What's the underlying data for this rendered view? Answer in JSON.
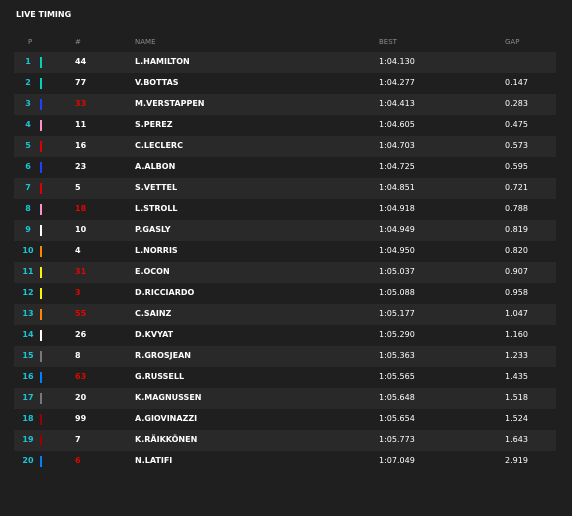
{
  "header": {
    "title": "LIVE TIMING"
  },
  "table": {
    "columns": [
      "P",
      "#",
      "NAME",
      "BEST",
      "GAP"
    ],
    "rows": [
      {
        "pos": "1",
        "number": "44",
        "name": "L.HAMILTON",
        "best": "1:04.130",
        "team_color": "#00d2be",
        "number_color": "#ffffff"
      },
      {
        "pos": "2",
        "number": "77",
        "name": "V.BOTTAS",
        "best": "1:04.277",
        "gap": "0.147",
        "team_color": "#00d2be",
        "number_color": "#ffffff"
      },
      {
        "pos": "3",
        "number": "33",
        "name": "M.VERSTAPPEN",
        "best": "1:04.413",
        "gap": "0.283",
        "team_color": "#1e41ff",
        "number_color": "#e10600"
      },
      {
        "pos": "4",
        "number": "11",
        "name": "S.PEREZ",
        "best": "1:04.605",
        "gap": "0.475",
        "team_color": "#f596c8",
        "number_color": "#ffffff"
      },
      {
        "pos": "5",
        "number": "16",
        "name": "C.LECLERC",
        "best": "1:04.703",
        "gap": "0.573",
        "team_color": "#dc0000",
        "number_color": "#ffffff"
      },
      {
        "pos": "6",
        "number": "23",
        "name": "A.ALBON",
        "best": "1:04.725",
        "gap": "0.595",
        "team_color": "#1e41ff",
        "number_color": "#ffffff"
      },
      {
        "pos": "7",
        "number": "5",
        "name": "S.VETTEL",
        "best": "1:04.851",
        "gap": "0.721",
        "team_color": "#dc0000",
        "number_color": "#ffffff"
      },
      {
        "pos": "8",
        "number": "18",
        "name": "L.STROLL",
        "best": "1:04.918",
        "gap": "0.788",
        "team_color": "#f596c8",
        "number_color": "#e10600"
      },
      {
        "pos": "9",
        "number": "10",
        "name": "P.GASLY",
        "best": "1:04.949",
        "gap": "0.819",
        "team_color": "#ffffff",
        "number_color": "#ffffff"
      },
      {
        "pos": "10",
        "number": "4",
        "name": "L.NORRIS",
        "best": "1:04.950",
        "gap": "0.820",
        "team_color": "#ff8700",
        "number_color": "#ffffff"
      },
      {
        "pos": "11",
        "number": "31",
        "name": "E.OCON",
        "best": "1:05.037",
        "gap": "0.907",
        "team_color": "#fff500",
        "number_color": "#e10600"
      },
      {
        "pos": "12",
        "number": "3",
        "name": "D.RICCIARDO",
        "best": "1:05.088",
        "gap": "0.958",
        "team_color": "#fff500",
        "number_color": "#e10600"
      },
      {
        "pos": "13",
        "number": "55",
        "name": "C.SAINZ",
        "best": "1:05.177",
        "gap": "1.047",
        "team_color": "#ff8700",
        "number_color": "#e10600"
      },
      {
        "pos": "14",
        "number": "26",
        "name": "D.KVYAT",
        "best": "1:05.290",
        "gap": "1.160",
        "team_color": "#ffffff",
        "number_color": "#ffffff"
      },
      {
        "pos": "15",
        "number": "8",
        "name": "R.GROSJEAN",
        "best": "1:05.363",
        "gap": "1.233",
        "team_color": "#787878",
        "number_color": "#ffffff"
      },
      {
        "pos": "16",
        "number": "63",
        "name": "G.RUSSELL",
        "best": "1:05.565",
        "gap": "1.435",
        "team_color": "#0082fa",
        "number_color": "#e10600"
      },
      {
        "pos": "17",
        "number": "20",
        "name": "K.MAGNUSSEN",
        "best": "1:05.648",
        "gap": "1.518",
        "team_color": "#787878",
        "number_color": "#ffffff"
      },
      {
        "pos": "18",
        "number": "99",
        "name": "A.GIOVINAZZI",
        "best": "1:05.654",
        "gap": "1.524",
        "team_color": "#9b0000",
        "number_color": "#ffffff"
      },
      {
        "pos": "19",
        "number": "7",
        "name": "K.RÄIKKÖNEN",
        "best": "1:05.773",
        "gap": "1.643",
        "team_color": "#9b0000",
        "number_color": "#ffffff"
      },
      {
        "pos": "20",
        "number": "6",
        "name": "N.LATIFI",
        "best": "1:07.049",
        "gap": "2.919",
        "team_color": "#0082fa",
        "number_color": "#e10600"
      }
    ]
  }
}
